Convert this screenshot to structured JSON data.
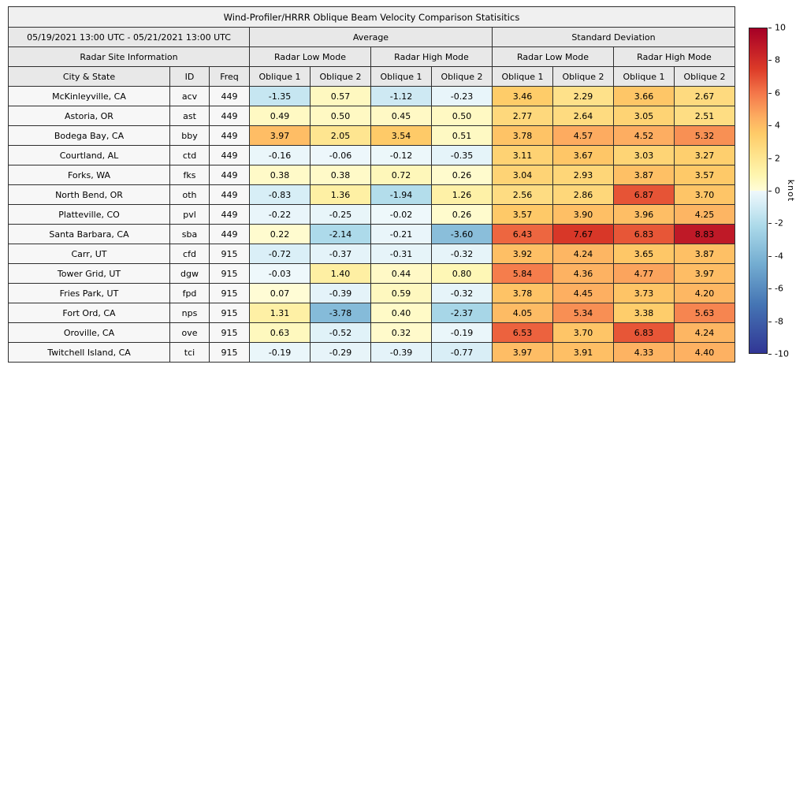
{
  "title": "Wind-Profiler/HRRR Oblique Beam Velocity Comparison Statisitics",
  "header": {
    "group_average": "Average",
    "group_std": "Standard Deviation",
    "site_info": "Radar Site Information",
    "mode_low": "Radar Low Mode",
    "mode_high": "Radar High Mode",
    "col_city": "City & State",
    "col_id": "ID",
    "col_freq": "Freq",
    "col_oblique1": "Oblique 1",
    "col_oblique2": "Oblique 2"
  },
  "colorbar": {
    "label": "knot",
    "min": -10,
    "max": 10,
    "ticks": [
      10,
      8,
      6,
      4,
      2,
      0,
      -2,
      -4,
      -6,
      -8,
      -10
    ],
    "stops": [
      {
        "v": -10,
        "c": "#313695"
      },
      {
        "v": -7,
        "c": "#4575b4"
      },
      {
        "v": -4.5,
        "c": "#74add1"
      },
      {
        "v": -2.2,
        "c": "#abd9e9"
      },
      {
        "v": -0.8,
        "c": "#d8eef6"
      },
      {
        "v": 0,
        "c": "#eff8fb"
      },
      {
        "v": 0,
        "c": "#fffdd8"
      },
      {
        "v": 1,
        "c": "#fef5ae"
      },
      {
        "v": 2.2,
        "c": "#fee38c"
      },
      {
        "v": 3.5,
        "c": "#fecb68"
      },
      {
        "v": 4.5,
        "c": "#fdae61"
      },
      {
        "v": 6,
        "c": "#f4774a"
      },
      {
        "v": 7.5,
        "c": "#dc3b28"
      },
      {
        "v": 8.8,
        "c": "#c01a27"
      },
      {
        "v": 10,
        "c": "#a50026"
      }
    ]
  },
  "chart_data": {
    "type": "heatmap",
    "title": "Wind-Profiler/HRRR Oblique Beam Velocity Comparison Statisitics",
    "period": "05/19/2021 13:00 UTC - 05/21/2021 13:00 UTC",
    "unit": "knot",
    "value_range": [
      -10,
      10
    ],
    "column_groups": [
      {
        "group": "Average",
        "mode": "Radar Low Mode",
        "columns": [
          "Oblique 1",
          "Oblique 2"
        ]
      },
      {
        "group": "Average",
        "mode": "Radar High Mode",
        "columns": [
          "Oblique 1",
          "Oblique 2"
        ]
      },
      {
        "group": "Standard Deviation",
        "mode": "Radar Low Mode",
        "columns": [
          "Oblique 1",
          "Oblique 2"
        ]
      },
      {
        "group": "Standard Deviation",
        "mode": "Radar High Mode",
        "columns": [
          "Oblique 1",
          "Oblique 2"
        ]
      }
    ],
    "rows": [
      {
        "city": "McKinleyville, CA",
        "id": "acv",
        "freq": 449,
        "values": [
          -1.35,
          0.57,
          -1.12,
          -0.23,
          3.46,
          2.29,
          3.66,
          2.67
        ]
      },
      {
        "city": "Astoria, OR",
        "id": "ast",
        "freq": 449,
        "values": [
          0.49,
          0.5,
          0.45,
          0.5,
          2.77,
          2.64,
          3.05,
          2.51
        ]
      },
      {
        "city": "Bodega Bay, CA",
        "id": "bby",
        "freq": 449,
        "values": [
          3.97,
          2.05,
          3.54,
          0.51,
          3.78,
          4.57,
          4.52,
          5.32
        ]
      },
      {
        "city": "Courtland, AL",
        "id": "ctd",
        "freq": 449,
        "values": [
          -0.16,
          -0.06,
          -0.12,
          -0.35,
          3.11,
          3.67,
          3.03,
          3.27
        ]
      },
      {
        "city": "Forks, WA",
        "id": "fks",
        "freq": 449,
        "values": [
          0.38,
          0.38,
          0.72,
          0.26,
          3.04,
          2.93,
          3.87,
          3.57
        ]
      },
      {
        "city": "North Bend, OR",
        "id": "oth",
        "freq": 449,
        "values": [
          -0.83,
          1.36,
          -1.94,
          1.26,
          2.56,
          2.86,
          6.87,
          3.7
        ]
      },
      {
        "city": "Platteville, CO",
        "id": "pvl",
        "freq": 449,
        "values": [
          -0.22,
          -0.25,
          -0.02,
          0.26,
          3.57,
          3.9,
          3.96,
          4.25
        ]
      },
      {
        "city": "Santa Barbara, CA",
        "id": "sba",
        "freq": 449,
        "values": [
          0.22,
          -2.14,
          -0.21,
          -3.6,
          6.43,
          7.67,
          6.83,
          8.83
        ]
      },
      {
        "city": "Carr, UT",
        "id": "cfd",
        "freq": 915,
        "values": [
          -0.72,
          -0.37,
          -0.31,
          -0.32,
          3.92,
          4.24,
          3.65,
          3.87
        ]
      },
      {
        "city": "Tower Grid, UT",
        "id": "dgw",
        "freq": 915,
        "values": [
          -0.03,
          1.4,
          0.44,
          0.8,
          5.84,
          4.36,
          4.77,
          3.97
        ]
      },
      {
        "city": "Fries Park, UT",
        "id": "fpd",
        "freq": 915,
        "values": [
          0.07,
          -0.39,
          0.59,
          -0.32,
          3.78,
          4.45,
          3.73,
          4.2
        ]
      },
      {
        "city": "Fort Ord, CA",
        "id": "nps",
        "freq": 915,
        "values": [
          1.31,
          -3.78,
          0.4,
          -2.37,
          4.05,
          5.34,
          3.38,
          5.63
        ]
      },
      {
        "city": "Oroville, CA",
        "id": "ove",
        "freq": 915,
        "values": [
          0.63,
          -0.52,
          0.32,
          -0.19,
          6.53,
          3.7,
          6.83,
          4.24
        ]
      },
      {
        "city": "Twitchell Island, CA",
        "id": "tci",
        "freq": 915,
        "values": [
          -0.19,
          -0.29,
          -0.39,
          -0.77,
          3.97,
          3.91,
          4.33,
          4.4
        ]
      }
    ]
  }
}
